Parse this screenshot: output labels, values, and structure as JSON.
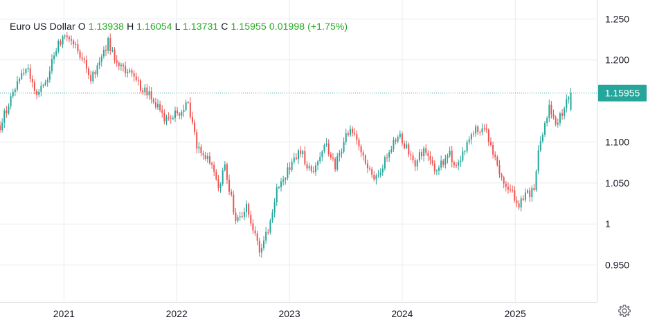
{
  "legend": {
    "name": "Euro US Dollar",
    "o_label": "O",
    "o": "1.13938",
    "h_label": "H",
    "h": "1.16054",
    "l_label": "L",
    "l": "1.13731",
    "c_label": "C",
    "c": "1.15955",
    "change": "0.01998",
    "change_pct": "(+1.75%)"
  },
  "colors": {
    "up": "#26a69a",
    "down": "#ef5350",
    "legend_up": "#22ab22",
    "last_price_bg": "#26a69a",
    "grid": "#e8eaee"
  },
  "icons": {
    "settings": "gear-icon"
  },
  "chart_data": {
    "type": "candlestick",
    "series_name": "Euro US Dollar",
    "ylim": [
      0.905,
      1.273
    ],
    "y_ticks": [
      {
        "value": 1.25,
        "label": "1.250"
      },
      {
        "value": 1.2,
        "label": "1.200"
      },
      {
        "value": 1.1,
        "label": "1.100"
      },
      {
        "value": 1.05,
        "label": "1.050"
      },
      {
        "value": 1.0,
        "label": "1"
      },
      {
        "value": 0.95,
        "label": "0.950"
      }
    ],
    "x_range": [
      "2020-06-08",
      "2025-09-22"
    ],
    "x_ticks": [
      {
        "date": "2021-01-01",
        "label": "2021"
      },
      {
        "date": "2022-01-01",
        "label": "2022"
      },
      {
        "date": "2023-01-01",
        "label": "2023"
      },
      {
        "date": "2024-01-01",
        "label": "2024"
      },
      {
        "date": "2025-01-01",
        "label": "2025"
      }
    ],
    "last_price": {
      "value": 1.15955,
      "label": "1.15955"
    },
    "grid": true,
    "anchors": [
      [
        "2020-06-08",
        1.12
      ],
      [
        "2020-07-20",
        1.16
      ],
      [
        "2020-08-10",
        1.18
      ],
      [
        "2020-09-07",
        1.19
      ],
      [
        "2020-09-28",
        1.16
      ],
      [
        "2020-11-02",
        1.17
      ],
      [
        "2020-12-07",
        1.215
      ],
      [
        "2021-01-04",
        1.23
      ],
      [
        "2021-03-01",
        1.205
      ],
      [
        "2021-03-29",
        1.175
      ],
      [
        "2021-05-24",
        1.222
      ],
      [
        "2021-06-28",
        1.19
      ],
      [
        "2021-08-02",
        1.185
      ],
      [
        "2021-08-23",
        1.172
      ],
      [
        "2021-10-04",
        1.16
      ],
      [
        "2021-11-22",
        1.127
      ],
      [
        "2021-12-27",
        1.133
      ],
      [
        "2022-02-07",
        1.145
      ],
      [
        "2022-03-07",
        1.095
      ],
      [
        "2022-04-25",
        1.07
      ],
      [
        "2022-05-16",
        1.045
      ],
      [
        "2022-06-06",
        1.07
      ],
      [
        "2022-07-11",
        1.005
      ],
      [
        "2022-08-15",
        1.02
      ],
      [
        "2022-09-26",
        0.965
      ],
      [
        "2022-10-24",
        0.995
      ],
      [
        "2022-11-21",
        1.04
      ],
      [
        "2023-01-02",
        1.07
      ],
      [
        "2023-02-06",
        1.09
      ],
      [
        "2023-03-13",
        1.06
      ],
      [
        "2023-04-24",
        1.1
      ],
      [
        "2023-05-29",
        1.07
      ],
      [
        "2023-07-17",
        1.12
      ],
      [
        "2023-08-21",
        1.085
      ],
      [
        "2023-10-02",
        1.05
      ],
      [
        "2023-11-27",
        1.095
      ],
      [
        "2023-12-25",
        1.105
      ],
      [
        "2024-02-12",
        1.075
      ],
      [
        "2024-03-11",
        1.09
      ],
      [
        "2024-04-15",
        1.065
      ],
      [
        "2024-06-03",
        1.085
      ],
      [
        "2024-06-24",
        1.07
      ],
      [
        "2024-08-26",
        1.115
      ],
      [
        "2024-09-30",
        1.11
      ],
      [
        "2024-11-18",
        1.055
      ],
      [
        "2025-01-13",
        1.025
      ],
      [
        "2025-02-03",
        1.035
      ],
      [
        "2025-03-03",
        1.04
      ],
      [
        "2025-03-17",
        1.09
      ],
      [
        "2025-04-21",
        1.14
      ],
      [
        "2025-05-12",
        1.12
      ],
      [
        "2025-06-09",
        1.14
      ],
      [
        "2025-06-30",
        1.16
      ]
    ]
  }
}
